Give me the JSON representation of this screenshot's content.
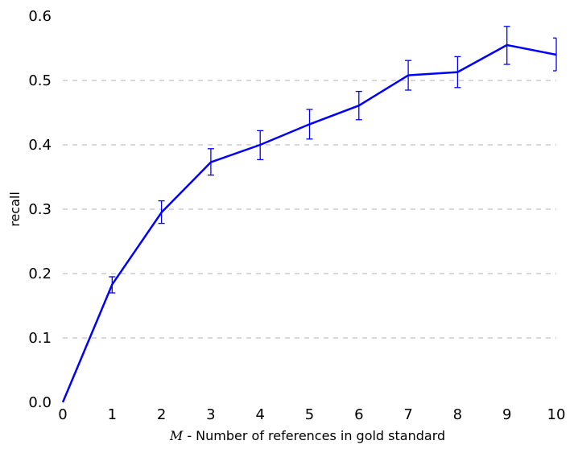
{
  "chart_data": {
    "type": "line",
    "title": "",
    "xlabel_var": "M",
    "xlabel_rest": " - Number of references in gold standard",
    "ylabel": "recall",
    "xlim": [
      0,
      10
    ],
    "ylim": [
      0.0,
      0.6
    ],
    "x_ticks": [
      0,
      1,
      2,
      3,
      4,
      5,
      6,
      7,
      8,
      9,
      10
    ],
    "x_tick_labels": [
      "0",
      "1",
      "2",
      "3",
      "4",
      "5",
      "6",
      "7",
      "8",
      "9",
      "10"
    ],
    "y_ticks": [
      0.0,
      0.1,
      0.2,
      0.3,
      0.4,
      0.5,
      0.6
    ],
    "y_tick_labels": [
      "0.0",
      "0.1",
      "0.2",
      "0.3",
      "0.4",
      "0.5",
      "0.6"
    ],
    "grid": "horizontal dashed",
    "color": "#0000ff",
    "series": [
      {
        "x": [
          0,
          1,
          2,
          3,
          4,
          5,
          6,
          7,
          8,
          9,
          10
        ],
        "y": [
          0.0,
          0.183,
          0.295,
          0.373,
          0.4,
          0.432,
          0.461,
          0.508,
          0.513,
          0.555,
          0.54
        ],
        "err_low": [
          0.0,
          0.17,
          0.278,
          0.353,
          0.377,
          0.409,
          0.439,
          0.485,
          0.489,
          0.525,
          0.515
        ],
        "err_high": [
          0.0,
          0.195,
          0.313,
          0.394,
          0.422,
          0.455,
          0.483,
          0.531,
          0.537,
          0.584,
          0.566
        ]
      }
    ]
  }
}
